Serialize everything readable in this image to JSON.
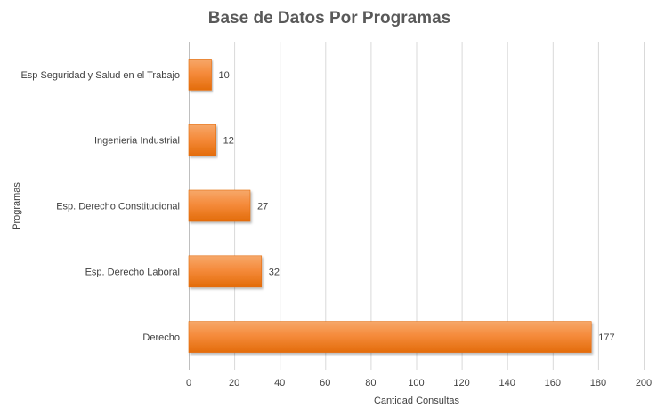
{
  "chart_data": {
    "type": "bar",
    "orientation": "horizontal",
    "title": "Base de Datos Por Programas",
    "xlabel": "Cantidad Consultas",
    "ylabel": "Programas",
    "categories": [
      "Derecho",
      "Esp. Derecho Laboral",
      "Esp. Derecho Constitucional",
      "Ingenieria Industrial",
      "Esp Seguridad y Salud en el Trabajo"
    ],
    "values": [
      177,
      32,
      27,
      12,
      10
    ],
    "data_labels": [
      "177",
      "32",
      "27",
      "12",
      "10"
    ],
    "xlim": [
      0,
      200
    ],
    "xticks": [
      0,
      20,
      40,
      60,
      80,
      100,
      120,
      140,
      160,
      180,
      200
    ],
    "xtick_labels": [
      "0",
      "20",
      "40",
      "60",
      "80",
      "100",
      "120",
      "140",
      "160",
      "180",
      "200"
    ],
    "grid": "vertical",
    "legend": "none",
    "colors": {
      "bar_light": "#f79646",
      "bar_dark": "#e36c09",
      "bar_edge": "#e46c0a"
    }
  }
}
